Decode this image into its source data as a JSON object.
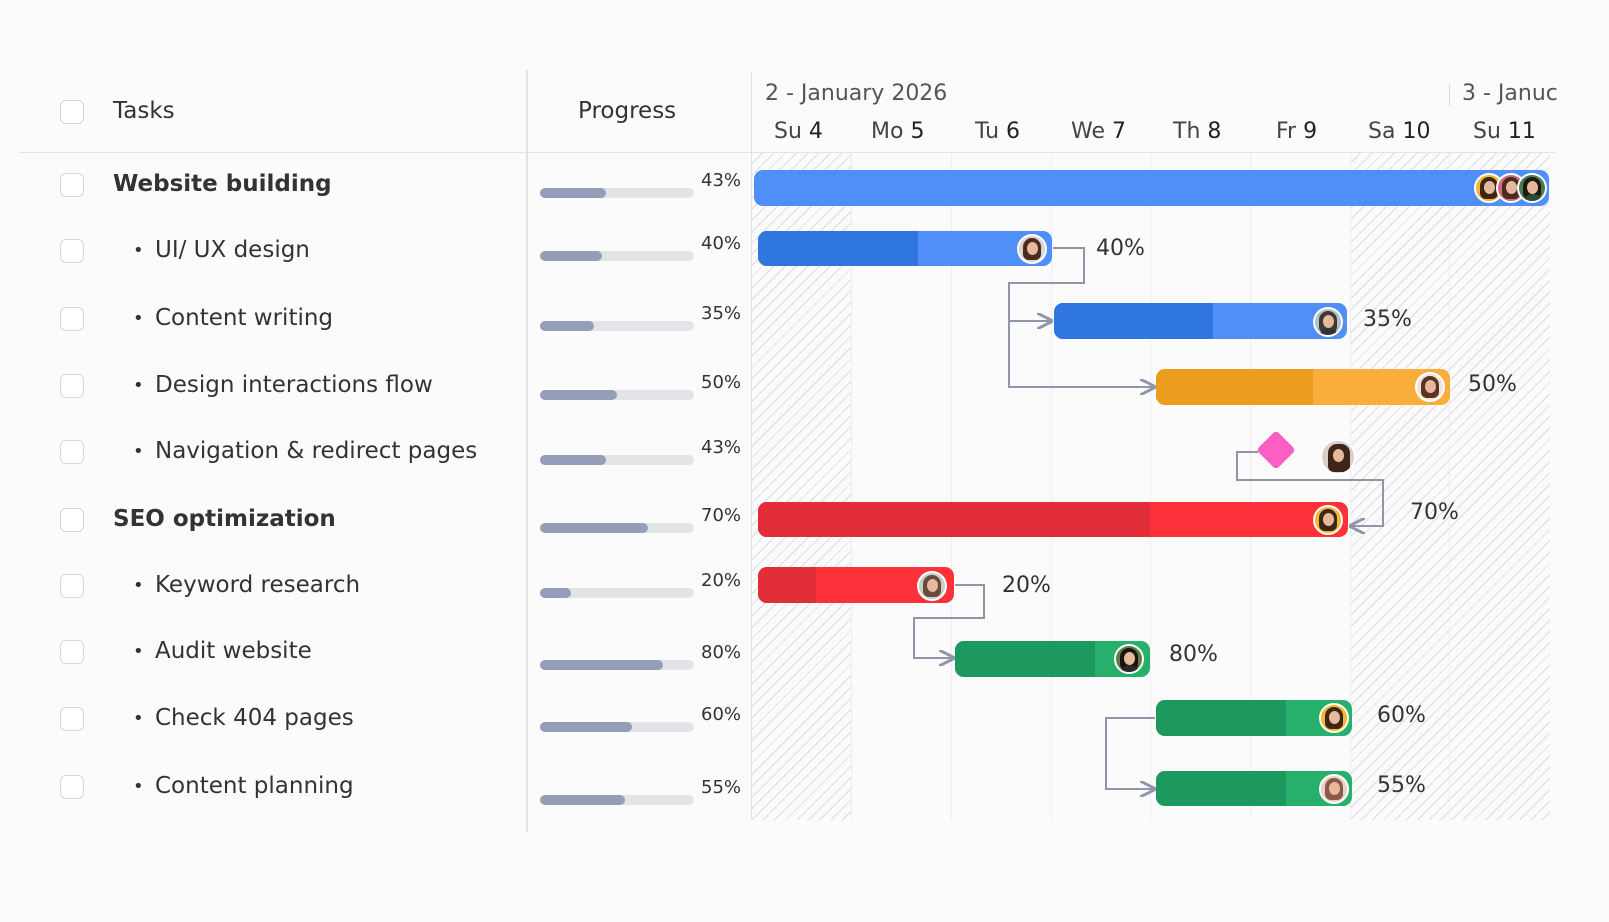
{
  "columns": {
    "tasks": "Tasks",
    "progress": "Progress"
  },
  "timeline": {
    "week1": "2 - January 2026",
    "week2": "3 - Januc",
    "days": [
      {
        "dow": "Su",
        "num": "4"
      },
      {
        "dow": "Mo",
        "num": "5"
      },
      {
        "dow": "Tu",
        "num": "6"
      },
      {
        "dow": "We",
        "num": "7"
      },
      {
        "dow": "Th",
        "num": "8"
      },
      {
        "dow": "Fr",
        "num": "9"
      },
      {
        "dow": "Sa",
        "num": "10"
      },
      {
        "dow": "Su",
        "num": "11"
      }
    ]
  },
  "tasks": [
    {
      "name": "Website building",
      "parent": true,
      "progress": "43%",
      "progress_value": 43
    },
    {
      "name": "UI/ UX design",
      "parent": false,
      "progress": "40%",
      "progress_value": 40,
      "bar_label": "40%"
    },
    {
      "name": "Content writing",
      "parent": false,
      "progress": "35%",
      "progress_value": 35,
      "bar_label": "35%"
    },
    {
      "name": "Design interactions flow",
      "parent": false,
      "progress": "50%",
      "progress_value": 50,
      "bar_label": "50%"
    },
    {
      "name": "Navigation & redirect pages",
      "parent": false,
      "progress": "43%",
      "progress_value": 43
    },
    {
      "name": "SEO optimization",
      "parent": true,
      "progress": "70%",
      "progress_value": 70,
      "bar_label": "70%"
    },
    {
      "name": "Keyword research",
      "parent": false,
      "progress": "20%",
      "progress_value": 20,
      "bar_label": "20%"
    },
    {
      "name": "Audit website",
      "parent": false,
      "progress": "80%",
      "progress_value": 80,
      "bar_label": "80%"
    },
    {
      "name": "Check 404 pages",
      "parent": false,
      "progress": "60%",
      "progress_value": 60,
      "bar_label": "60%"
    },
    {
      "name": "Content planning",
      "parent": false,
      "progress": "55%",
      "progress_value": 55,
      "bar_label": "55%"
    }
  ],
  "colors": {
    "blue": "#4f8ff7",
    "blue_dark": "#2f76e0",
    "orange": "#fbad3b",
    "orange_dark": "#ec9c1f",
    "red": "#fd3139",
    "red_dark": "#e12e38",
    "green": "#26b06b",
    "green_dark": "#1d9960",
    "milestone": "#fd5ec4",
    "progress_fill": "#959eb9"
  },
  "icons": [
    "checkbox-icon",
    "avatar-icon",
    "milestone-diamond-icon",
    "dependency-arrow-icon"
  ]
}
